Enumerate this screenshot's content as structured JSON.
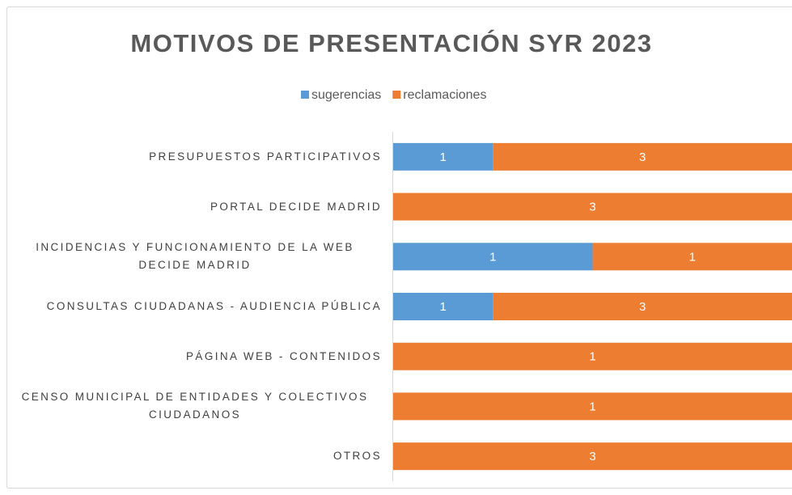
{
  "chart_data": {
    "type": "bar",
    "orientation": "horizontal",
    "stacking": "percent",
    "title": "MOTIVOS DE PRESENTACIÓN SYR 2023",
    "legend": "top",
    "categories": [
      "PRESUPUESTOS PARTICIPATIVOS",
      "PORTAL DECIDE MADRID",
      "INCIDENCIAS Y FUNCIONAMIENTO DE LA WEB DECIDE MADRID",
      "CONSULTAS CIUDADANAS - AUDIENCIA PÚBLICA",
      "PÁGINA WEB - CONTENIDOS",
      "CENSO MUNICIPAL DE ENTIDADES Y COLECTIVOS CIUDADANOS",
      "OTROS"
    ],
    "series": [
      {
        "name": "sugerencias",
        "color": "#5b9bd5",
        "values": [
          1,
          0,
          1,
          1,
          0,
          0,
          0
        ]
      },
      {
        "name": "reclamaciones",
        "color": "#ed7d31",
        "values": [
          3,
          3,
          1,
          3,
          1,
          1,
          3
        ]
      }
    ]
  }
}
